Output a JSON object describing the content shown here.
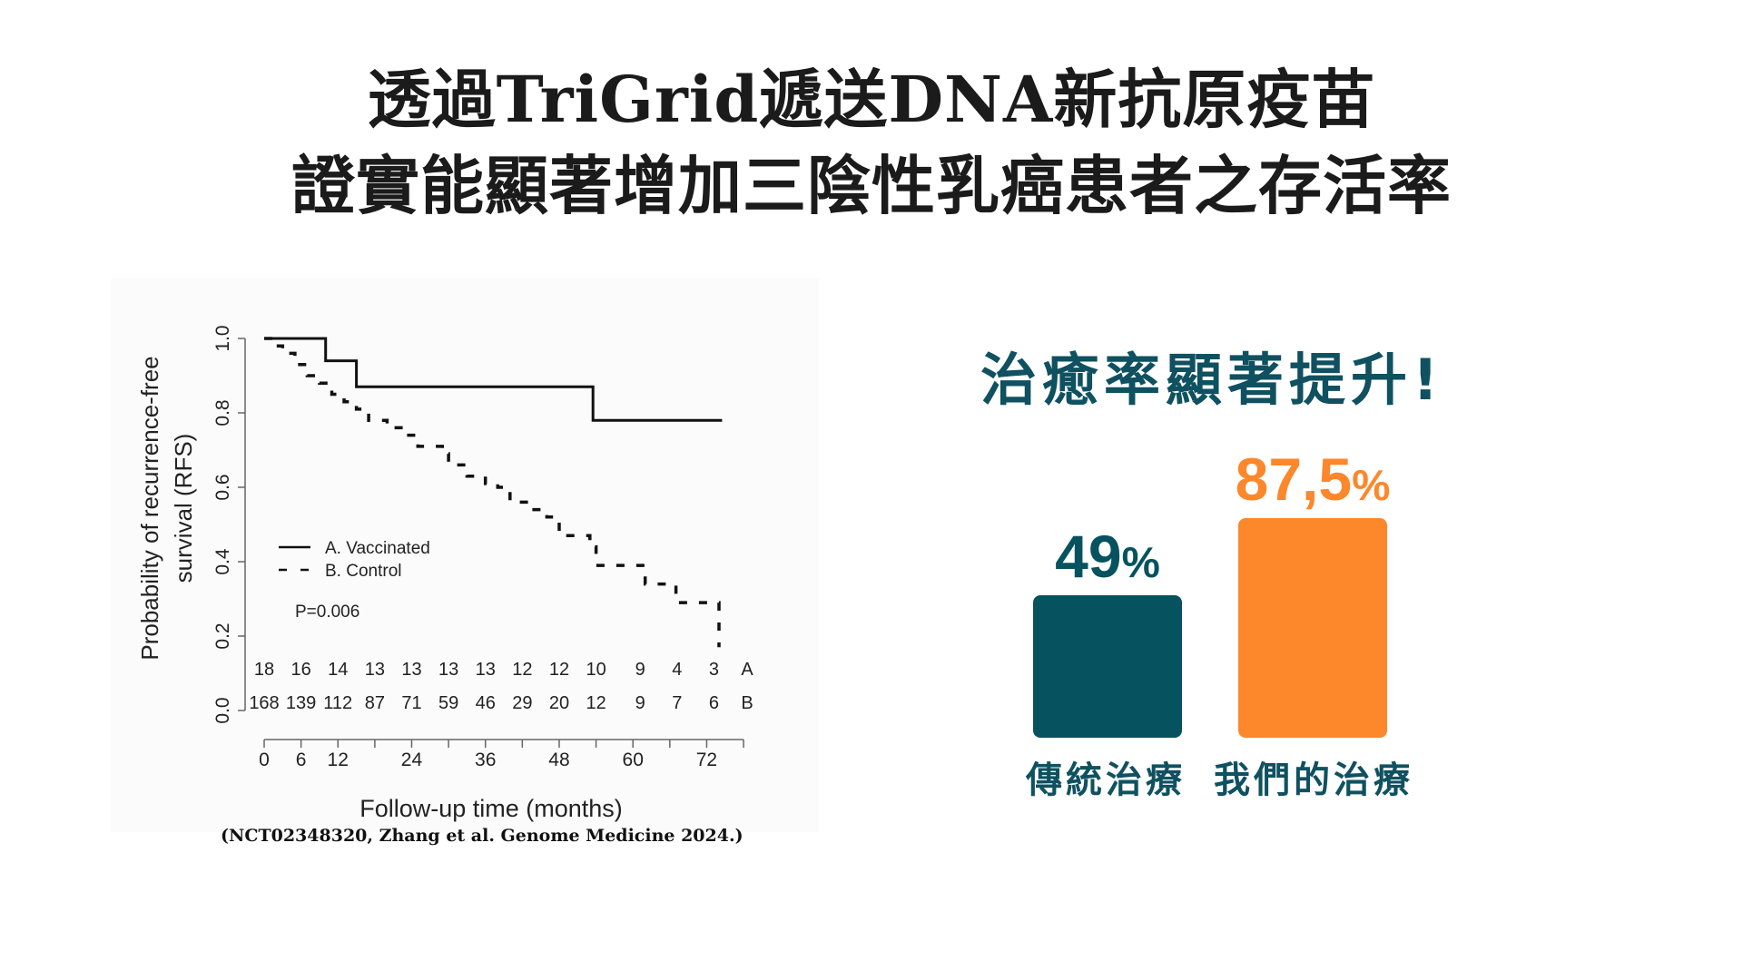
{
  "title": {
    "line1_parts": [
      "透過",
      "TriGrid",
      "遞送",
      "DNA",
      "新抗原疫苗"
    ],
    "line2": "證實能顯著增加三陰性乳癌患者之存活率"
  },
  "km_chart": {
    "ylabel_line1": "Probability of recurrence-free",
    "ylabel_line2": "survival (RFS)",
    "xlabel": "Follow-up time (months)",
    "legend": [
      {
        "label": "A. Vaccinated",
        "style": "solid"
      },
      {
        "label": "B. Control",
        "style": "dashed"
      }
    ],
    "p_value": "P=0.006",
    "risk_table_label_a": "A",
    "risk_table_label_b": "B",
    "citation": "(NCT02348320, Zhang et al. Genome Medicine 2024.)"
  },
  "bar_chart": {
    "heading": "治癒率顯著提升!",
    "bars": [
      {
        "label": "傳統治療",
        "value_text": "49",
        "pct": "%",
        "value": 49,
        "color": "#06525f"
      },
      {
        "label": "我們的治療",
        "value_text": "87,5",
        "pct": "%",
        "value": 87.5,
        "color": "#fd872b"
      }
    ]
  },
  "colors": {
    "title": "#1b1b1b",
    "teal": "#06525f",
    "teal_text": "#0f5160",
    "orange": "#fd872b"
  },
  "chart_data": [
    {
      "type": "line",
      "subtype": "kaplan-meier step",
      "title": "",
      "xlabel": "Follow-up time (months)",
      "ylabel": "Probability of recurrence-free survival (RFS)",
      "xlim": [
        0,
        78
      ],
      "ylim": [
        0.0,
        1.0
      ],
      "x_ticks": [
        0,
        6,
        12,
        24,
        36,
        48,
        60,
        72
      ],
      "x_minor_ticks": [
        18,
        30,
        42,
        54,
        66,
        78
      ],
      "y_ticks": [
        0.0,
        0.2,
        0.4,
        0.6,
        0.8,
        1.0
      ],
      "grid": false,
      "legend_position": "center-left",
      "annotations": [
        "P=0.006"
      ],
      "series": [
        {
          "name": "A. Vaccinated",
          "style": "solid",
          "x": [
            0,
            10,
            10,
            15,
            15,
            53.5,
            53.5,
            74.5
          ],
          "y": [
            1.0,
            1.0,
            0.94,
            0.94,
            0.87,
            0.87,
            0.78,
            0.78
          ]
        },
        {
          "name": "B. Control",
          "style": "dashed",
          "x": [
            0,
            1.5,
            3,
            5,
            7,
            9,
            11,
            13,
            15,
            17,
            20,
            23,
            25,
            28,
            29,
            30,
            33,
            36,
            38,
            40,
            43,
            46,
            48,
            50,
            53,
            54,
            58,
            62,
            65,
            67,
            72,
            74
          ],
          "y": [
            1.0,
            0.98,
            0.96,
            0.93,
            0.9,
            0.88,
            0.85,
            0.83,
            0.81,
            0.78,
            0.76,
            0.74,
            0.71,
            0.71,
            0.69,
            0.66,
            0.63,
            0.61,
            0.6,
            0.56,
            0.54,
            0.52,
            0.47,
            0.47,
            0.44,
            0.39,
            0.39,
            0.34,
            0.34,
            0.29,
            0.29,
            0.17
          ]
        }
      ],
      "risk_table": {
        "time_points": [
          0,
          6,
          12,
          18,
          24,
          30,
          36,
          42,
          48,
          54,
          60,
          66,
          72
        ],
        "A": [
          18,
          16,
          14,
          13,
          13,
          13,
          13,
          12,
          12,
          10,
          9,
          4,
          3
        ],
        "B": [
          168,
          139,
          112,
          87,
          71,
          59,
          46,
          29,
          20,
          12,
          9,
          7,
          6
        ]
      }
    },
    {
      "type": "bar",
      "title": "治癒率顯著提升!",
      "categories": [
        "傳統治療",
        "我們的治療"
      ],
      "values": [
        49,
        87.5
      ],
      "value_labels": [
        "49%",
        "87,5%"
      ],
      "colors": [
        "#06525f",
        "#fd872b"
      ],
      "xlabel": "",
      "ylabel": "",
      "ylim": [
        0,
        100
      ],
      "grid": false
    }
  ]
}
